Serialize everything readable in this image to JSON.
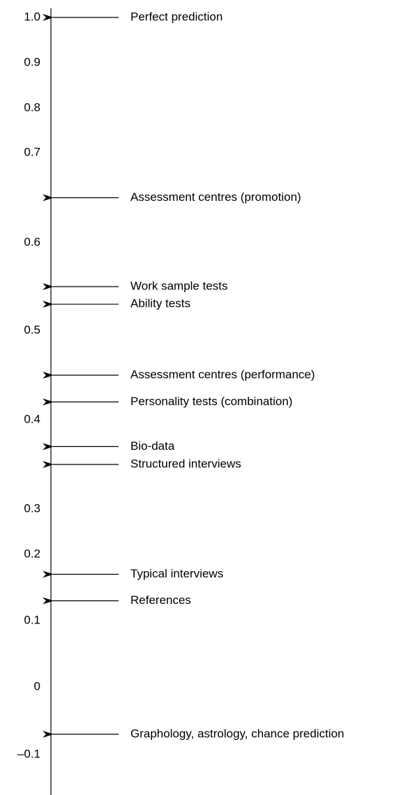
{
  "chart_data": {
    "type": "annotated-scale",
    "categories": [
      "Perfect prediction",
      "Assessment centres (promotion)",
      "Work sample tests",
      "Ability tests",
      "Assessment centres (performance)",
      "Personality tests (combination)",
      "Bio-data",
      "Structured interviews",
      "Typical interviews",
      "References",
      "Graphology, astrology, chance prediction"
    ],
    "values": [
      1.0,
      0.65,
      0.55,
      0.53,
      0.45,
      0.42,
      0.37,
      0.35,
      0.17,
      0.13,
      -0.07
    ],
    "ylim": [
      -0.16,
      1.02
    ],
    "yticks": [
      {
        "value": 1,
        "label": "1.0"
      },
      0.9,
      0.8,
      0.7,
      0.6,
      0.5,
      0.4,
      0.3,
      0.2,
      0.1,
      0,
      {
        "value": -0.1,
        "label": "–0.1"
      }
    ],
    "color": "#000000"
  }
}
